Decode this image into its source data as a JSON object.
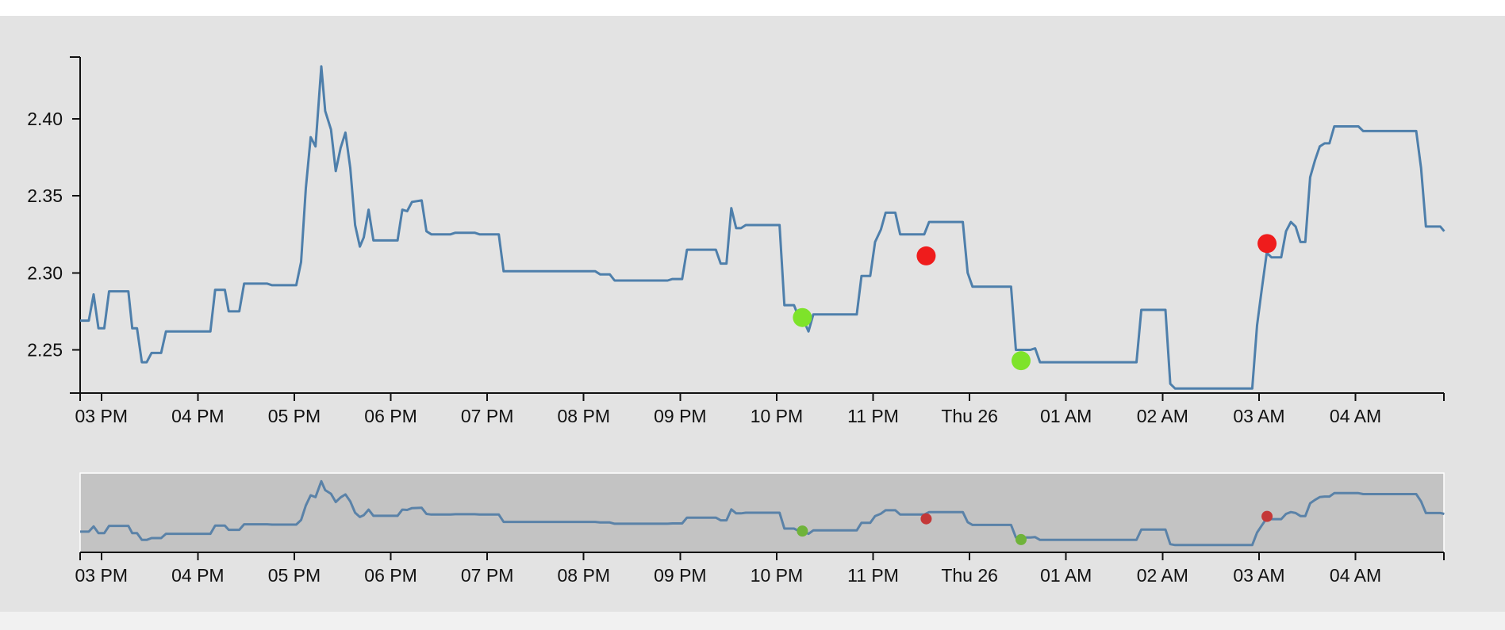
{
  "chart_data": {
    "type": "line",
    "title": "",
    "xlabel": "",
    "ylabel": "",
    "x_domain": [
      "15:00",
      "28:55"
    ],
    "x_start_hour": 14.78,
    "y_domain": [
      2.222,
      2.44
    ],
    "x_ticks": [
      {
        "time": "15:00",
        "label": "03 PM"
      },
      {
        "time": "16:00",
        "label": "04 PM"
      },
      {
        "time": "17:00",
        "label": "05 PM"
      },
      {
        "time": "18:00",
        "label": "06 PM"
      },
      {
        "time": "19:00",
        "label": "07 PM"
      },
      {
        "time": "20:00",
        "label": "08 PM"
      },
      {
        "time": "21:00",
        "label": "09 PM"
      },
      {
        "time": "22:00",
        "label": "10 PM"
      },
      {
        "time": "23:00",
        "label": "11 PM"
      },
      {
        "time": "24:00",
        "label": "Thu 26"
      },
      {
        "time": "25:00",
        "label": "01 AM"
      },
      {
        "time": "26:00",
        "label": "02 AM"
      },
      {
        "time": "27:00",
        "label": "03 AM"
      },
      {
        "time": "28:00",
        "label": "04 AM"
      }
    ],
    "y_ticks": [
      {
        "value": 2.25,
        "label": "2.25"
      },
      {
        "value": 2.3,
        "label": "2.30"
      },
      {
        "value": 2.35,
        "label": "2.35"
      },
      {
        "value": 2.4,
        "label": "2.40"
      }
    ],
    "series": [
      {
        "color": "#4e7fab",
        "points": [
          [
            14.78,
            2.269
          ],
          [
            14.87,
            2.269
          ],
          [
            14.92,
            2.286
          ],
          [
            14.97,
            2.264
          ],
          [
            15.03,
            2.264
          ],
          [
            15.08,
            2.288
          ],
          [
            15.28,
            2.288
          ],
          [
            15.32,
            2.264
          ],
          [
            15.37,
            2.264
          ],
          [
            15.42,
            2.242
          ],
          [
            15.47,
            2.242
          ],
          [
            15.52,
            2.248
          ],
          [
            15.62,
            2.248
          ],
          [
            15.67,
            2.262
          ],
          [
            16.13,
            2.262
          ],
          [
            16.18,
            2.289
          ],
          [
            16.28,
            2.289
          ],
          [
            16.32,
            2.275
          ],
          [
            16.43,
            2.275
          ],
          [
            16.48,
            2.293
          ],
          [
            16.72,
            2.293
          ],
          [
            16.77,
            2.292
          ],
          [
            17.02,
            2.292
          ],
          [
            17.07,
            2.307
          ],
          [
            17.12,
            2.355
          ],
          [
            17.17,
            2.388
          ],
          [
            17.22,
            2.382
          ],
          [
            17.28,
            2.434
          ],
          [
            17.32,
            2.405
          ],
          [
            17.38,
            2.393
          ],
          [
            17.43,
            2.366
          ],
          [
            17.48,
            2.381
          ],
          [
            17.53,
            2.391
          ],
          [
            17.58,
            2.368
          ],
          [
            17.63,
            2.331
          ],
          [
            17.68,
            2.317
          ],
          [
            17.72,
            2.323
          ],
          [
            17.77,
            2.341
          ],
          [
            17.82,
            2.321
          ],
          [
            18.07,
            2.321
          ],
          [
            18.12,
            2.341
          ],
          [
            18.17,
            2.34
          ],
          [
            18.22,
            2.346
          ],
          [
            18.32,
            2.347
          ],
          [
            18.37,
            2.327
          ],
          [
            18.42,
            2.325
          ],
          [
            18.62,
            2.325
          ],
          [
            18.67,
            2.326
          ],
          [
            18.87,
            2.326
          ],
          [
            18.92,
            2.325
          ],
          [
            19.12,
            2.325
          ],
          [
            19.17,
            2.301
          ],
          [
            20.12,
            2.301
          ],
          [
            20.17,
            2.299
          ],
          [
            20.27,
            2.299
          ],
          [
            20.32,
            2.295
          ],
          [
            20.87,
            2.295
          ],
          [
            20.92,
            2.296
          ],
          [
            21.02,
            2.296
          ],
          [
            21.07,
            2.315
          ],
          [
            21.37,
            2.315
          ],
          [
            21.42,
            2.306
          ],
          [
            21.48,
            2.306
          ],
          [
            21.53,
            2.342
          ],
          [
            21.58,
            2.329
          ],
          [
            21.63,
            2.329
          ],
          [
            21.68,
            2.331
          ],
          [
            22.03,
            2.331
          ],
          [
            22.08,
            2.279
          ],
          [
            22.18,
            2.279
          ],
          [
            22.23,
            2.271
          ],
          [
            22.28,
            2.269
          ],
          [
            22.33,
            2.262
          ],
          [
            22.38,
            2.273
          ],
          [
            22.83,
            2.273
          ],
          [
            22.88,
            2.298
          ],
          [
            22.97,
            2.298
          ],
          [
            23.02,
            2.32
          ],
          [
            23.08,
            2.328
          ],
          [
            23.13,
            2.339
          ],
          [
            23.23,
            2.339
          ],
          [
            23.28,
            2.325
          ],
          [
            23.53,
            2.325
          ],
          [
            23.58,
            2.333
          ],
          [
            23.93,
            2.333
          ],
          [
            23.98,
            2.3
          ],
          [
            24.03,
            2.291
          ],
          [
            24.43,
            2.291
          ],
          [
            24.48,
            2.25
          ],
          [
            24.63,
            2.25
          ],
          [
            24.68,
            2.251
          ],
          [
            24.73,
            2.242
          ],
          [
            25.73,
            2.242
          ],
          [
            25.78,
            2.276
          ],
          [
            26.03,
            2.276
          ],
          [
            26.08,
            2.228
          ],
          [
            26.13,
            2.225
          ],
          [
            26.93,
            2.225
          ],
          [
            26.98,
            2.266
          ],
          [
            27.03,
            2.29
          ],
          [
            27.08,
            2.313
          ],
          [
            27.13,
            2.31
          ],
          [
            27.23,
            2.31
          ],
          [
            27.28,
            2.327
          ],
          [
            27.33,
            2.333
          ],
          [
            27.38,
            2.33
          ],
          [
            27.43,
            2.32
          ],
          [
            27.48,
            2.32
          ],
          [
            27.53,
            2.362
          ],
          [
            27.58,
            2.373
          ],
          [
            27.63,
            2.382
          ],
          [
            27.68,
            2.384
          ],
          [
            27.73,
            2.384
          ],
          [
            27.78,
            2.395
          ],
          [
            28.03,
            2.395
          ],
          [
            28.08,
            2.392
          ],
          [
            28.63,
            2.392
          ],
          [
            28.68,
            2.368
          ],
          [
            28.73,
            2.33
          ],
          [
            28.88,
            2.33
          ],
          [
            28.92,
            2.327
          ]
        ]
      }
    ],
    "markers": [
      {
        "time": "22:16",
        "value": 2.271,
        "color": "#7ee32a"
      },
      {
        "time": "23:33",
        "value": 2.311,
        "color": "#ef1c1c"
      },
      {
        "time": "24:32",
        "value": 2.243,
        "color": "#7ee32a"
      },
      {
        "time": "27:05",
        "value": 2.319,
        "color": "#ef1c1c"
      }
    ],
    "brush_markers": [
      {
        "time": "22:16",
        "color": "#6fb33a"
      },
      {
        "time": "23:33",
        "color": "#c43838"
      },
      {
        "time": "24:32",
        "color": "#6fb33a"
      },
      {
        "time": "27:05",
        "color": "#c43838"
      }
    ],
    "grid": false,
    "legend": "none"
  },
  "colors": {
    "panel_background": "#e3e3e3",
    "brush_background": "#c3c3c3",
    "line": "#4e7fab"
  }
}
